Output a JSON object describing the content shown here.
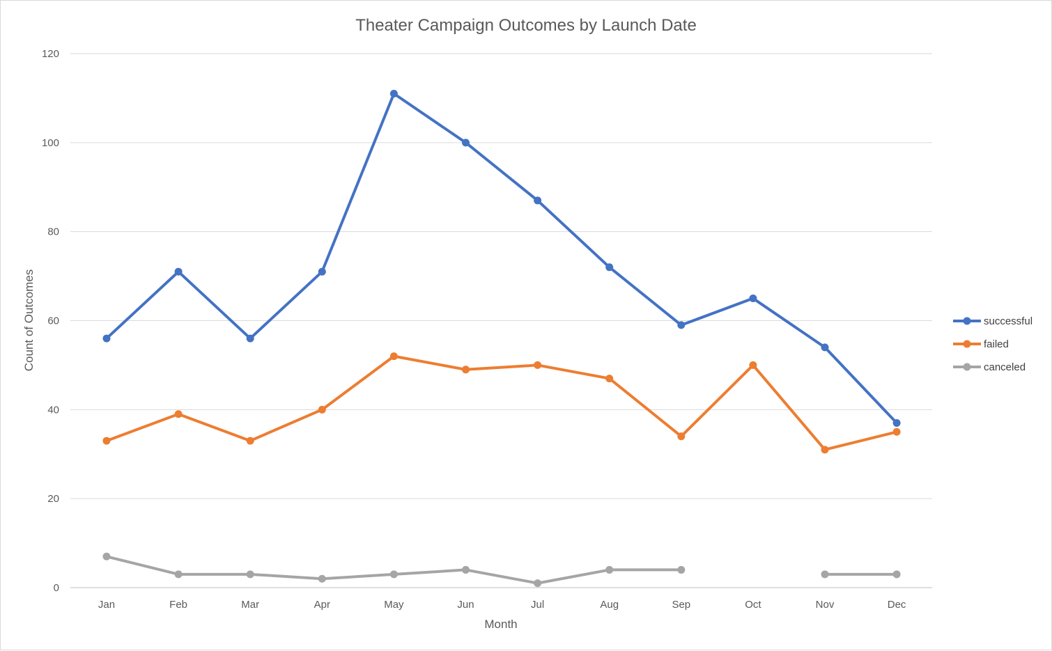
{
  "chart_data": {
    "type": "line",
    "title": "Theater Campaign Outcomes by Launch Date",
    "xlabel": "Month",
    "ylabel": "Count of Outcomes",
    "categories": [
      "Jan",
      "Feb",
      "Mar",
      "Apr",
      "May",
      "Jun",
      "Jul",
      "Aug",
      "Sep",
      "Oct",
      "Nov",
      "Dec"
    ],
    "ylim": [
      0,
      120
    ],
    "yticks": [
      0,
      20,
      40,
      60,
      80,
      100,
      120
    ],
    "grid": true,
    "legend_position": "right",
    "series": [
      {
        "name": "successful",
        "color": "#4472C4",
        "values": [
          56,
          71,
          56,
          71,
          111,
          100,
          87,
          72,
          59,
          65,
          54,
          37
        ]
      },
      {
        "name": "failed",
        "color": "#ED7D31",
        "values": [
          33,
          39,
          33,
          40,
          52,
          49,
          50,
          47,
          34,
          50,
          31,
          35
        ]
      },
      {
        "name": "canceled",
        "color": "#A5A5A5",
        "values": [
          7,
          3,
          3,
          2,
          3,
          4,
          1,
          4,
          4,
          null,
          3,
          3
        ]
      }
    ]
  }
}
